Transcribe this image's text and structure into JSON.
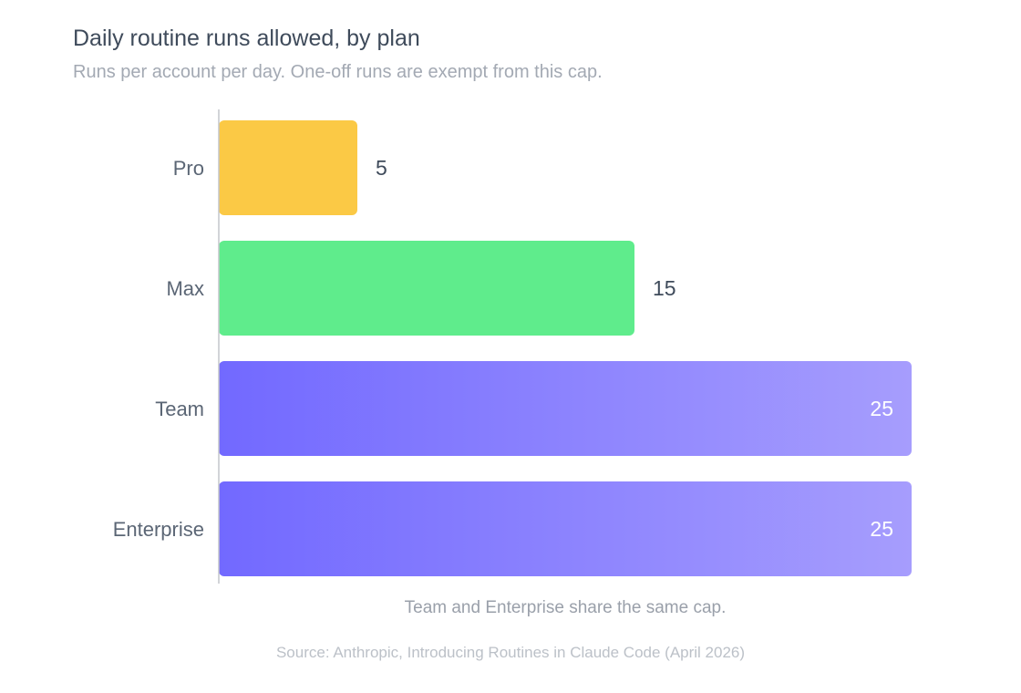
{
  "chart_data": {
    "type": "bar",
    "orientation": "horizontal",
    "title": "Daily routine runs allowed, by plan",
    "subtitle": "Runs per account per day. One-off runs are exempt from this cap.",
    "categories": [
      "Pro",
      "Max",
      "Team",
      "Enterprise"
    ],
    "values": [
      5,
      15,
      25,
      25
    ],
    "value_labels": [
      "5",
      "15",
      "25",
      "25"
    ],
    "xlim": [
      0,
      25
    ],
    "grid": false,
    "bar_colors": [
      "#fbc945",
      "#5fec8c",
      "gradient:#7269ff-#a69dfd",
      "gradient:#7269ff-#a69dfd"
    ],
    "annotation": "Team and Enterprise share the same cap.",
    "source": "Source: Anthropic, Introducing Routines in Claude Code (April 2026)"
  },
  "colors": {
    "title": "#3f4b5b",
    "label": "#5b6675",
    "value_outside": "#3f4b5b",
    "value_inside": "#ffffff",
    "axis": "#c3c6cc"
  }
}
